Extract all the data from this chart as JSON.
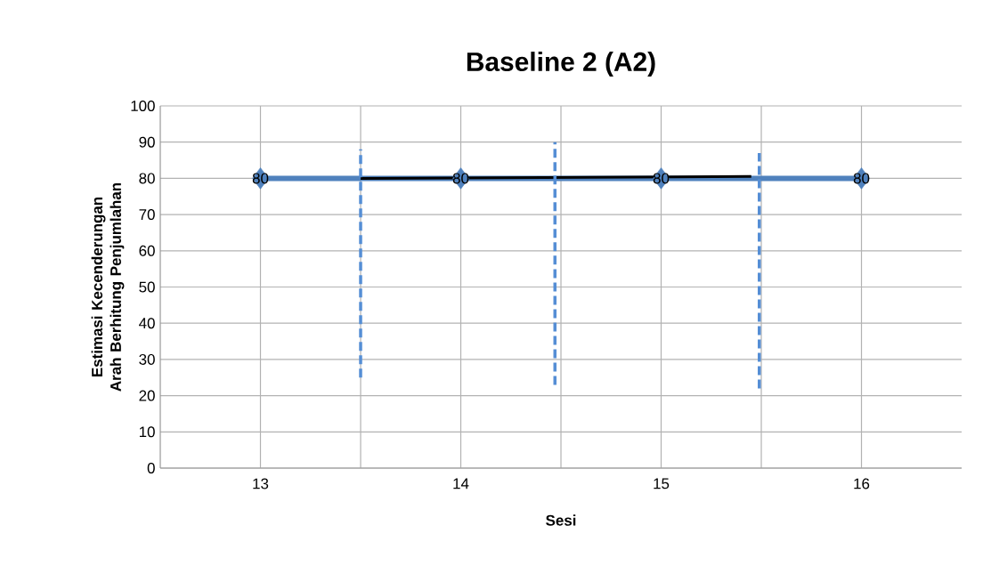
{
  "chart_data": {
    "type": "line",
    "title": "Baseline 2 (A2)",
    "xlabel": "Sesi",
    "ylabel": "Estimasi Kecenderungan Arah Berhitung Penjumlahan",
    "xlim": [
      12.5,
      16.5
    ],
    "xticks": [
      13,
      {
        "value": 13.5,
        "label": null
      },
      14,
      {
        "value": 14.5,
        "label": null
      },
      15,
      {
        "value": 15.5,
        "label": null
      },
      16
    ],
    "ylim": [
      0,
      100
    ],
    "yticks": [
      0,
      10,
      20,
      30,
      40,
      50,
      60,
      70,
      80,
      90,
      100
    ],
    "grid": true,
    "series": [
      {
        "x": [
          13,
          14,
          15,
          16
        ],
        "values": [
          80,
          80,
          80,
          80
        ],
        "color": "#4f81bd",
        "marker": "diamond",
        "line_style": "solid",
        "value_labels": [
          "80",
          "80",
          "80",
          "80"
        ]
      },
      {
        "x": [
          13.5,
          15.45
        ],
        "values": [
          80,
          80.5
        ],
        "color": "#000000",
        "marker": "none",
        "line_style": "solid"
      },
      {
        "x": [
          13.5,
          13.5
        ],
        "values": [
          25,
          88
        ],
        "color": "#558ed5",
        "marker": "none",
        "line_style": "dashed"
      },
      {
        "x": [
          14.47,
          14.47
        ],
        "values": [
          23,
          90
        ],
        "color": "#558ed5",
        "marker": "none",
        "line_style": "dashed"
      },
      {
        "x": [
          15.49,
          15.49
        ],
        "values": [
          22,
          87
        ],
        "color": "#558ed5",
        "marker": "none",
        "line_style": "dashed"
      }
    ]
  }
}
